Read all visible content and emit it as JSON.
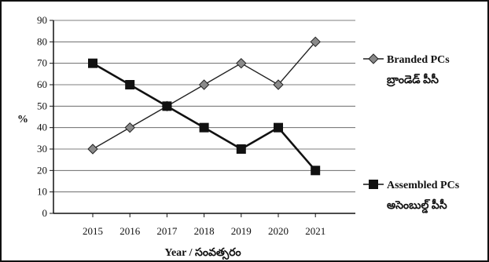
{
  "chart_data": {
    "type": "line",
    "title": "",
    "xlabel": "Year / సంవత్సరం",
    "ylabel": "%",
    "x": [
      "2015",
      "2016",
      "2017",
      "2018",
      "2019",
      "2020",
      "2021"
    ],
    "yticks": [
      "0",
      "10",
      "20",
      "30",
      "40",
      "50",
      "60",
      "70",
      "80",
      "90"
    ],
    "ylim": [
      0,
      90
    ],
    "grid": true,
    "legend_position": "right",
    "series": [
      {
        "name": "Branded PCs",
        "name_telugu": "బ్రాండెడ్ పీసీ",
        "marker": "diamond",
        "color": "#222222",
        "values": [
          30,
          40,
          50,
          60,
          70,
          60,
          80
        ]
      },
      {
        "name": "Assembled PCs",
        "name_telugu": "అసెంబుల్డ్ పీసీ",
        "marker": "square",
        "color": "#111111",
        "values": [
          70,
          60,
          50,
          40,
          30,
          40,
          20
        ]
      }
    ]
  }
}
